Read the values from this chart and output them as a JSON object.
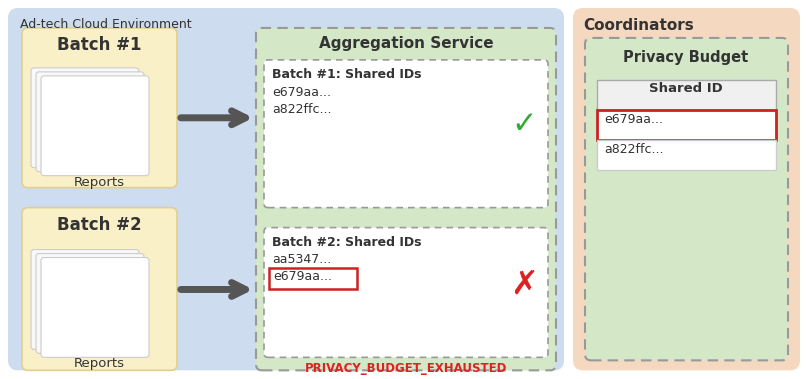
{
  "bg_color": "#ffffff",
  "cloud_env_color": "#cddcee",
  "cloud_env_label": "Ad-tech Cloud Environment",
  "coordinators_color": "#f5d8c0",
  "coordinators_label": "Coordinators",
  "agg_service_bg": "#d4e8c8",
  "agg_service_label": "Aggregation Service",
  "privacy_budget_bg": "#d4e8c8",
  "privacy_budget_label": "Privacy Budget",
  "batch1_label": "Batch #1",
  "batch2_label": "Batch #2",
  "reports_label": "Reports",
  "batch1_box_title": "Batch #1: Shared IDs",
  "batch1_id1": "e679aa...",
  "batch1_id2": "a822ffc...",
  "batch2_box_title": "Batch #2: Shared IDs",
  "batch2_id1": "aa5347...",
  "batch2_id2": "e679aa...",
  "shared_id_header": "Shared ID",
  "coord_id1": "e679aa...",
  "coord_id2": "a822ffc...",
  "privacy_exhausted_label": "PRIVACY_BUDGET_EXHAUSTED",
  "batch_box_color": "#faf0c8",
  "batch_box_edge": "#e0d090",
  "inner_box_bg": "#ffffff",
  "dashed_box_color": "#999999",
  "arrow_color": "#555555",
  "check_color": "#33aa33",
  "cross_color": "#dd2222",
  "highlight_border_color": "#cc2222",
  "text_dark": "#333333",
  "doc_color": "#f5f5f5",
  "doc_edge": "#cccccc"
}
